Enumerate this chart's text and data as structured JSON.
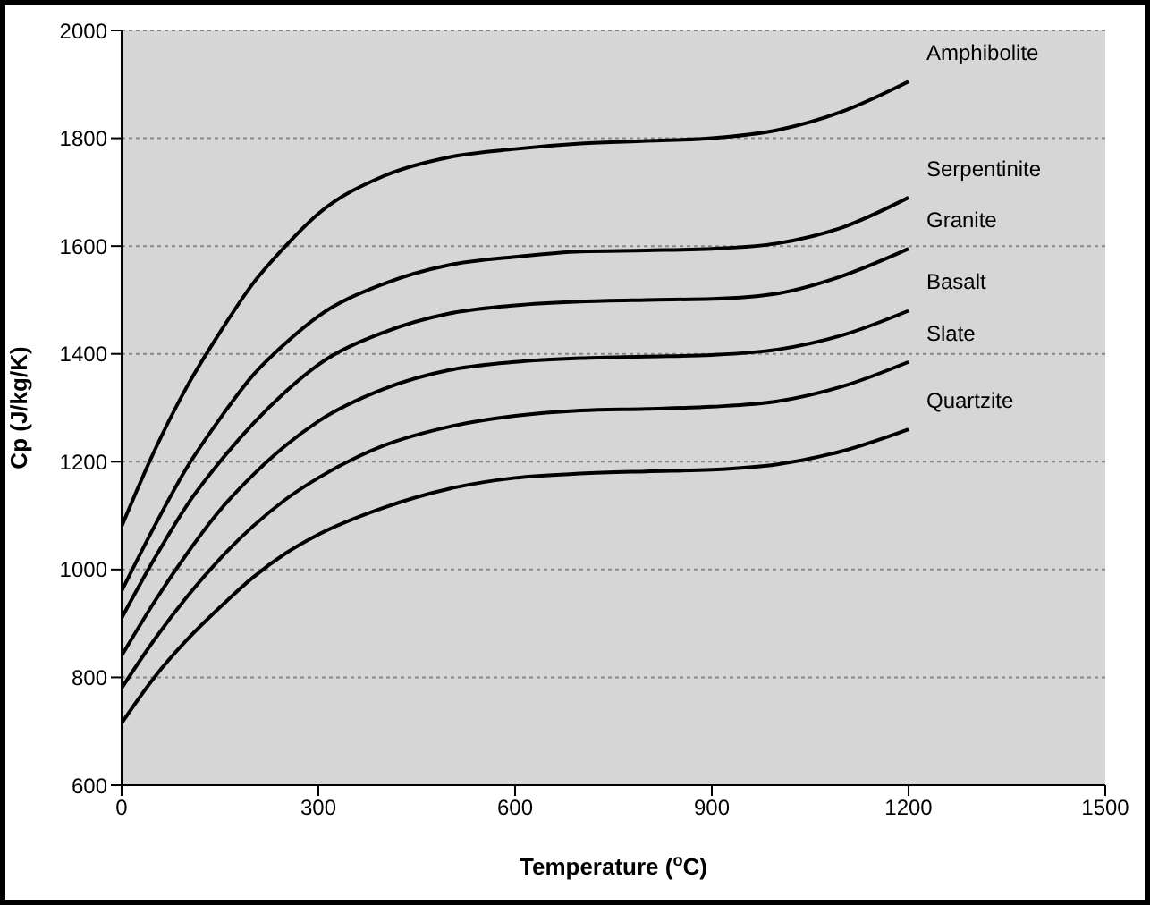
{
  "chart_data": {
    "type": "line",
    "xlabel": "Temperature ($^{o}$C)",
    "ylabel": "Cp (J/kg/K)",
    "x": [
      0,
      50,
      100,
      150,
      200,
      250,
      300,
      400,
      500,
      600,
      700,
      800,
      900,
      1000,
      1100,
      1200
    ],
    "series": [
      {
        "name": "Amphibolite",
        "color": "#000000",
        "values": [
          1080,
          1220,
          1340,
          1440,
          1530,
          1600,
          1660,
          1730,
          1765,
          1780,
          1790,
          1795,
          1800,
          1815,
          1850,
          1905
        ]
      },
      {
        "name": "Serpentinite",
        "color": "#000000",
        "values": [
          960,
          1080,
          1190,
          1280,
          1360,
          1420,
          1470,
          1530,
          1565,
          1580,
          1590,
          1592,
          1595,
          1605,
          1635,
          1690
        ]
      },
      {
        "name": "Granite",
        "color": "#000000",
        "values": [
          910,
          1020,
          1120,
          1200,
          1270,
          1330,
          1380,
          1440,
          1475,
          1490,
          1497,
          1500,
          1502,
          1512,
          1545,
          1595
        ]
      },
      {
        "name": "Basalt",
        "color": "#000000",
        "values": [
          840,
          940,
          1030,
          1110,
          1175,
          1230,
          1275,
          1335,
          1370,
          1385,
          1392,
          1395,
          1398,
          1408,
          1435,
          1480
        ]
      },
      {
        "name": "Slate",
        "color": "#000000",
        "values": [
          780,
          870,
          950,
          1020,
          1080,
          1130,
          1170,
          1230,
          1265,
          1285,
          1295,
          1298,
          1302,
          1312,
          1340,
          1385
        ]
      },
      {
        "name": "Quartzite",
        "color": "#000000",
        "values": [
          715,
          800,
          870,
          930,
          985,
          1030,
          1065,
          1115,
          1150,
          1170,
          1178,
          1182,
          1185,
          1195,
          1220,
          1260
        ]
      }
    ],
    "xlim": [
      0,
      1500
    ],
    "xticks": [
      0,
      300,
      600,
      900,
      1200,
      1500
    ],
    "ylim": [
      600,
      2000
    ],
    "yticks": [
      600,
      800,
      1000,
      1200,
      1400,
      1600,
      1800,
      2000
    ],
    "grid": "y",
    "legend": false,
    "marker": "none",
    "line_style": "solid"
  }
}
